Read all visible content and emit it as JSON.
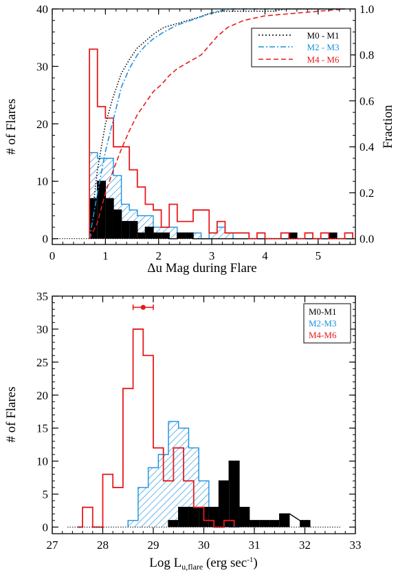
{
  "colors": {
    "m0m1": "#000000",
    "m2m3": "#1a8fe0",
    "m4m6": "#e8191c",
    "axis": "#000000"
  },
  "chart_data": [
    {
      "type": "histogram",
      "xlabel": "Δu Mag during Flare",
      "ylabel": "# of Flares",
      "y2label": "Fraction",
      "xlim": [
        0,
        5.7
      ],
      "ylim": [
        -1,
        40
      ],
      "y2lim": [
        -0.025,
        1.0
      ],
      "xticks": [
        "0",
        "1",
        "2",
        "3",
        "4",
        "5"
      ],
      "yticks": [
        "0",
        "10",
        "20",
        "30",
        "40"
      ],
      "y2ticks": [
        "0.0",
        "0.2",
        "0.4",
        "0.6",
        "0.8",
        "1.0"
      ],
      "legend": {
        "placement": "top-right",
        "entries": [
          "M0 - M1",
          "M2 - M3",
          "M4 - M6"
        ]
      },
      "bin_start": 0.7,
      "bin_width": 0.15,
      "series": [
        {
          "name": "M0 - M1",
          "style": "black filled",
          "counts": [
            7,
            10,
            7,
            5,
            3,
            3,
            1,
            2,
            1,
            1,
            0,
            1,
            1,
            0,
            0,
            0,
            0,
            0,
            0,
            0,
            0,
            0,
            0,
            0,
            0,
            1,
            0,
            0,
            0,
            0,
            1,
            0,
            0
          ]
        },
        {
          "name": "M2 - M3",
          "style": "blue hatched",
          "counts": [
            15,
            14,
            14,
            11,
            6,
            5,
            4,
            4,
            2,
            2,
            2,
            1,
            1,
            1,
            0,
            1,
            2,
            1,
            0,
            0,
            0,
            0,
            0,
            0,
            0,
            0,
            0,
            0,
            0,
            0,
            0,
            0,
            0
          ]
        },
        {
          "name": "M4 - M6",
          "style": "red outline",
          "counts": [
            33,
            23,
            21,
            16,
            16,
            12,
            9,
            6,
            5,
            2,
            6,
            3,
            3,
            5,
            5,
            1,
            3,
            1,
            1,
            1,
            0,
            1,
            0,
            0,
            1,
            0,
            0,
            1,
            0,
            1,
            0,
            0,
            1
          ]
        }
      ],
      "cumulative": [
        {
          "name": "M0 - M1",
          "x": [
            0.7,
            0.85,
            1.0,
            1.15,
            1.3,
            1.45,
            1.6,
            1.75,
            1.9,
            2.1,
            2.4,
            2.7,
            2.95,
            3.2,
            3.45,
            3.7,
            3.95,
            4.05,
            4.15,
            4.4,
            5.5
          ],
          "y": [
            0.0,
            0.3,
            0.5,
            0.62,
            0.72,
            0.78,
            0.83,
            0.86,
            0.89,
            0.92,
            0.94,
            0.96,
            0.98,
            0.99,
            0.99,
            0.99,
            0.99,
            0.99,
            0.99,
            1.0,
            1.0
          ]
        },
        {
          "name": "M2 - M3",
          "x": [
            0.7,
            0.85,
            1.0,
            1.15,
            1.3,
            1.45,
            1.6,
            1.75,
            1.9,
            2.1,
            2.35,
            2.6,
            2.85,
            3.1,
            3.4,
            5.5
          ],
          "y": [
            0.0,
            0.2,
            0.38,
            0.52,
            0.66,
            0.74,
            0.8,
            0.84,
            0.87,
            0.9,
            0.93,
            0.95,
            0.97,
            0.99,
            1.0,
            1.0
          ]
        },
        {
          "name": "M4 - M6",
          "x": [
            0.7,
            0.85,
            1.0,
            1.15,
            1.3,
            1.45,
            1.6,
            1.75,
            1.9,
            2.05,
            2.2,
            2.35,
            2.5,
            2.65,
            2.8,
            2.95,
            3.1,
            3.3,
            3.6,
            4.0,
            4.5,
            5.0,
            5.5
          ],
          "y": [
            0.0,
            0.07,
            0.2,
            0.3,
            0.39,
            0.47,
            0.54,
            0.59,
            0.64,
            0.67,
            0.71,
            0.74,
            0.76,
            0.78,
            0.8,
            0.84,
            0.88,
            0.92,
            0.95,
            0.97,
            0.98,
            0.99,
            1.0
          ]
        }
      ]
    },
    {
      "type": "histogram",
      "xlabel_main": "Log L",
      "xlabel_sub": "u,flare",
      "xlabel_unit": " (erg sec",
      "xlabel_sup": "-1",
      "xlabel_close": ")",
      "ylabel": "# of Flares",
      "xlim": [
        27,
        33
      ],
      "ylim": [
        -1,
        35
      ],
      "xticks": [
        "27",
        "28",
        "29",
        "30",
        "31",
        "32",
        "33"
      ],
      "yticks": [
        "0",
        "5",
        "10",
        "15",
        "20",
        "25",
        "30",
        "35"
      ],
      "legend": {
        "placement": "top-right",
        "entries": [
          "M0-M1",
          "M2-M3",
          "M4-M6"
        ]
      },
      "error_point": {
        "x": 28.8,
        "y": 33.3,
        "xerr": 0.2
      },
      "series": [
        {
          "name": "M0-M1",
          "style": "black filled",
          "bins": [
            [
              29.3,
              29.5,
              1
            ],
            [
              29.5,
              29.7,
              3
            ],
            [
              29.7,
              29.9,
              3
            ],
            [
              29.9,
              30.1,
              3
            ],
            [
              30.1,
              30.3,
              3
            ],
            [
              30.3,
              30.5,
              7
            ],
            [
              30.5,
              30.7,
              10
            ],
            [
              30.7,
              30.9,
              3
            ],
            [
              30.9,
              31.1,
              1
            ],
            [
              31.1,
              31.3,
              1
            ],
            [
              31.3,
              31.5,
              1
            ],
            [
              31.5,
              31.7,
              2
            ],
            [
              31.9,
              32.1,
              1
            ]
          ]
        },
        {
          "name": "M2-M3",
          "style": "blue hatched",
          "bins": [
            [
              28.5,
              28.7,
              1
            ],
            [
              28.7,
              28.9,
              6
            ],
            [
              28.9,
              29.1,
              9
            ],
            [
              29.1,
              29.3,
              11
            ],
            [
              29.3,
              29.5,
              16
            ],
            [
              29.5,
              29.7,
              15
            ],
            [
              29.7,
              29.9,
              12
            ],
            [
              29.9,
              30.1,
              7
            ],
            [
              30.1,
              30.3,
              2
            ],
            [
              30.3,
              30.5,
              1
            ],
            [
              30.5,
              30.7,
              0
            ],
            [
              30.7,
              30.9,
              1
            ]
          ]
        },
        {
          "name": "M4-M6",
          "style": "red outline",
          "bins": [
            [
              27.5,
              27.6,
              0
            ],
            [
              27.6,
              27.8,
              3
            ],
            [
              27.8,
              28.0,
              0
            ],
            [
              28.0,
              28.2,
              8
            ],
            [
              28.2,
              28.4,
              6
            ],
            [
              28.4,
              28.6,
              21
            ],
            [
              28.6,
              28.8,
              30
            ],
            [
              28.8,
              29.0,
              26
            ],
            [
              29.0,
              29.2,
              12
            ],
            [
              29.2,
              29.4,
              7
            ],
            [
              29.4,
              29.6,
              12
            ],
            [
              29.6,
              29.8,
              7
            ],
            [
              29.8,
              30.0,
              3
            ],
            [
              30.0,
              30.2,
              1
            ],
            [
              30.2,
              30.4,
              0
            ],
            [
              30.4,
              30.6,
              1
            ]
          ]
        }
      ]
    }
  ]
}
